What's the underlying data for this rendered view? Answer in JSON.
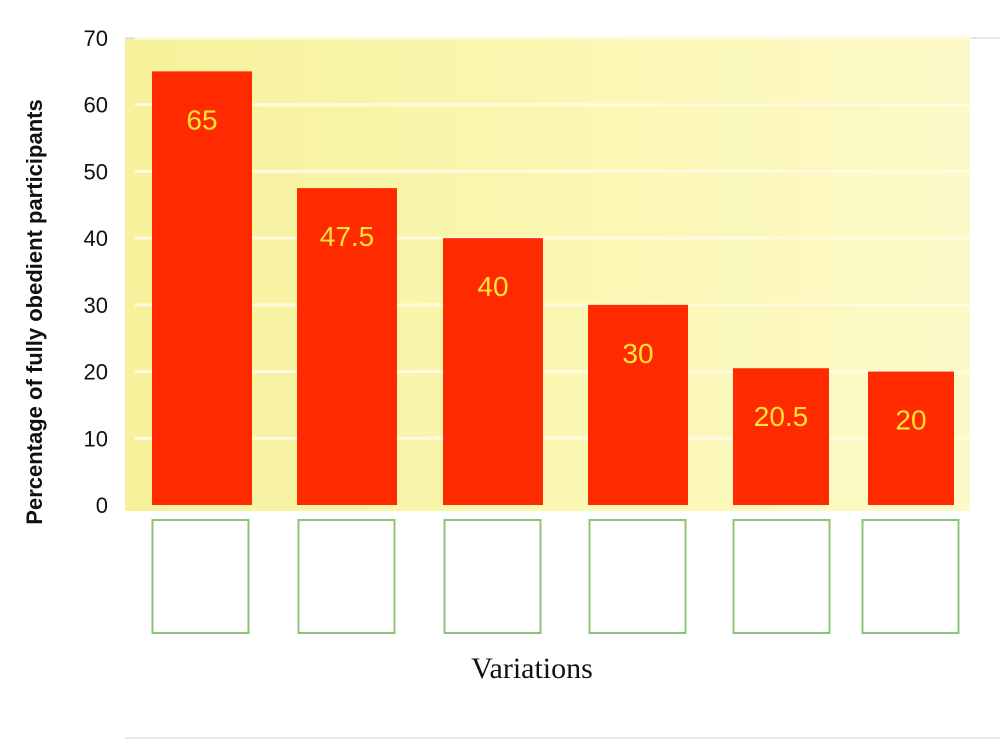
{
  "chart_data": {
    "type": "bar",
    "categories": [
      "",
      "",
      "",
      "",
      "",
      ""
    ],
    "values": [
      65,
      47.5,
      40,
      30,
      20.5,
      20
    ],
    "value_labels": [
      "65",
      "47.5",
      "40",
      "30",
      "20.5",
      "20"
    ],
    "xlabel": "Variations",
    "ylabel": "Percentage of fully obedient participants",
    "ylim": [
      0,
      70
    ],
    "yticks": [
      "0",
      "10",
      "20",
      "30",
      "40",
      "50",
      "60",
      "70"
    ],
    "grid": true,
    "legend": "none"
  },
  "colors": {
    "bar": "#ff2a00",
    "value_label": "#ffe236",
    "plot_background": "#f9f7a0",
    "gridline": "#fffbe0",
    "category_box_border": "#8bc47a"
  }
}
